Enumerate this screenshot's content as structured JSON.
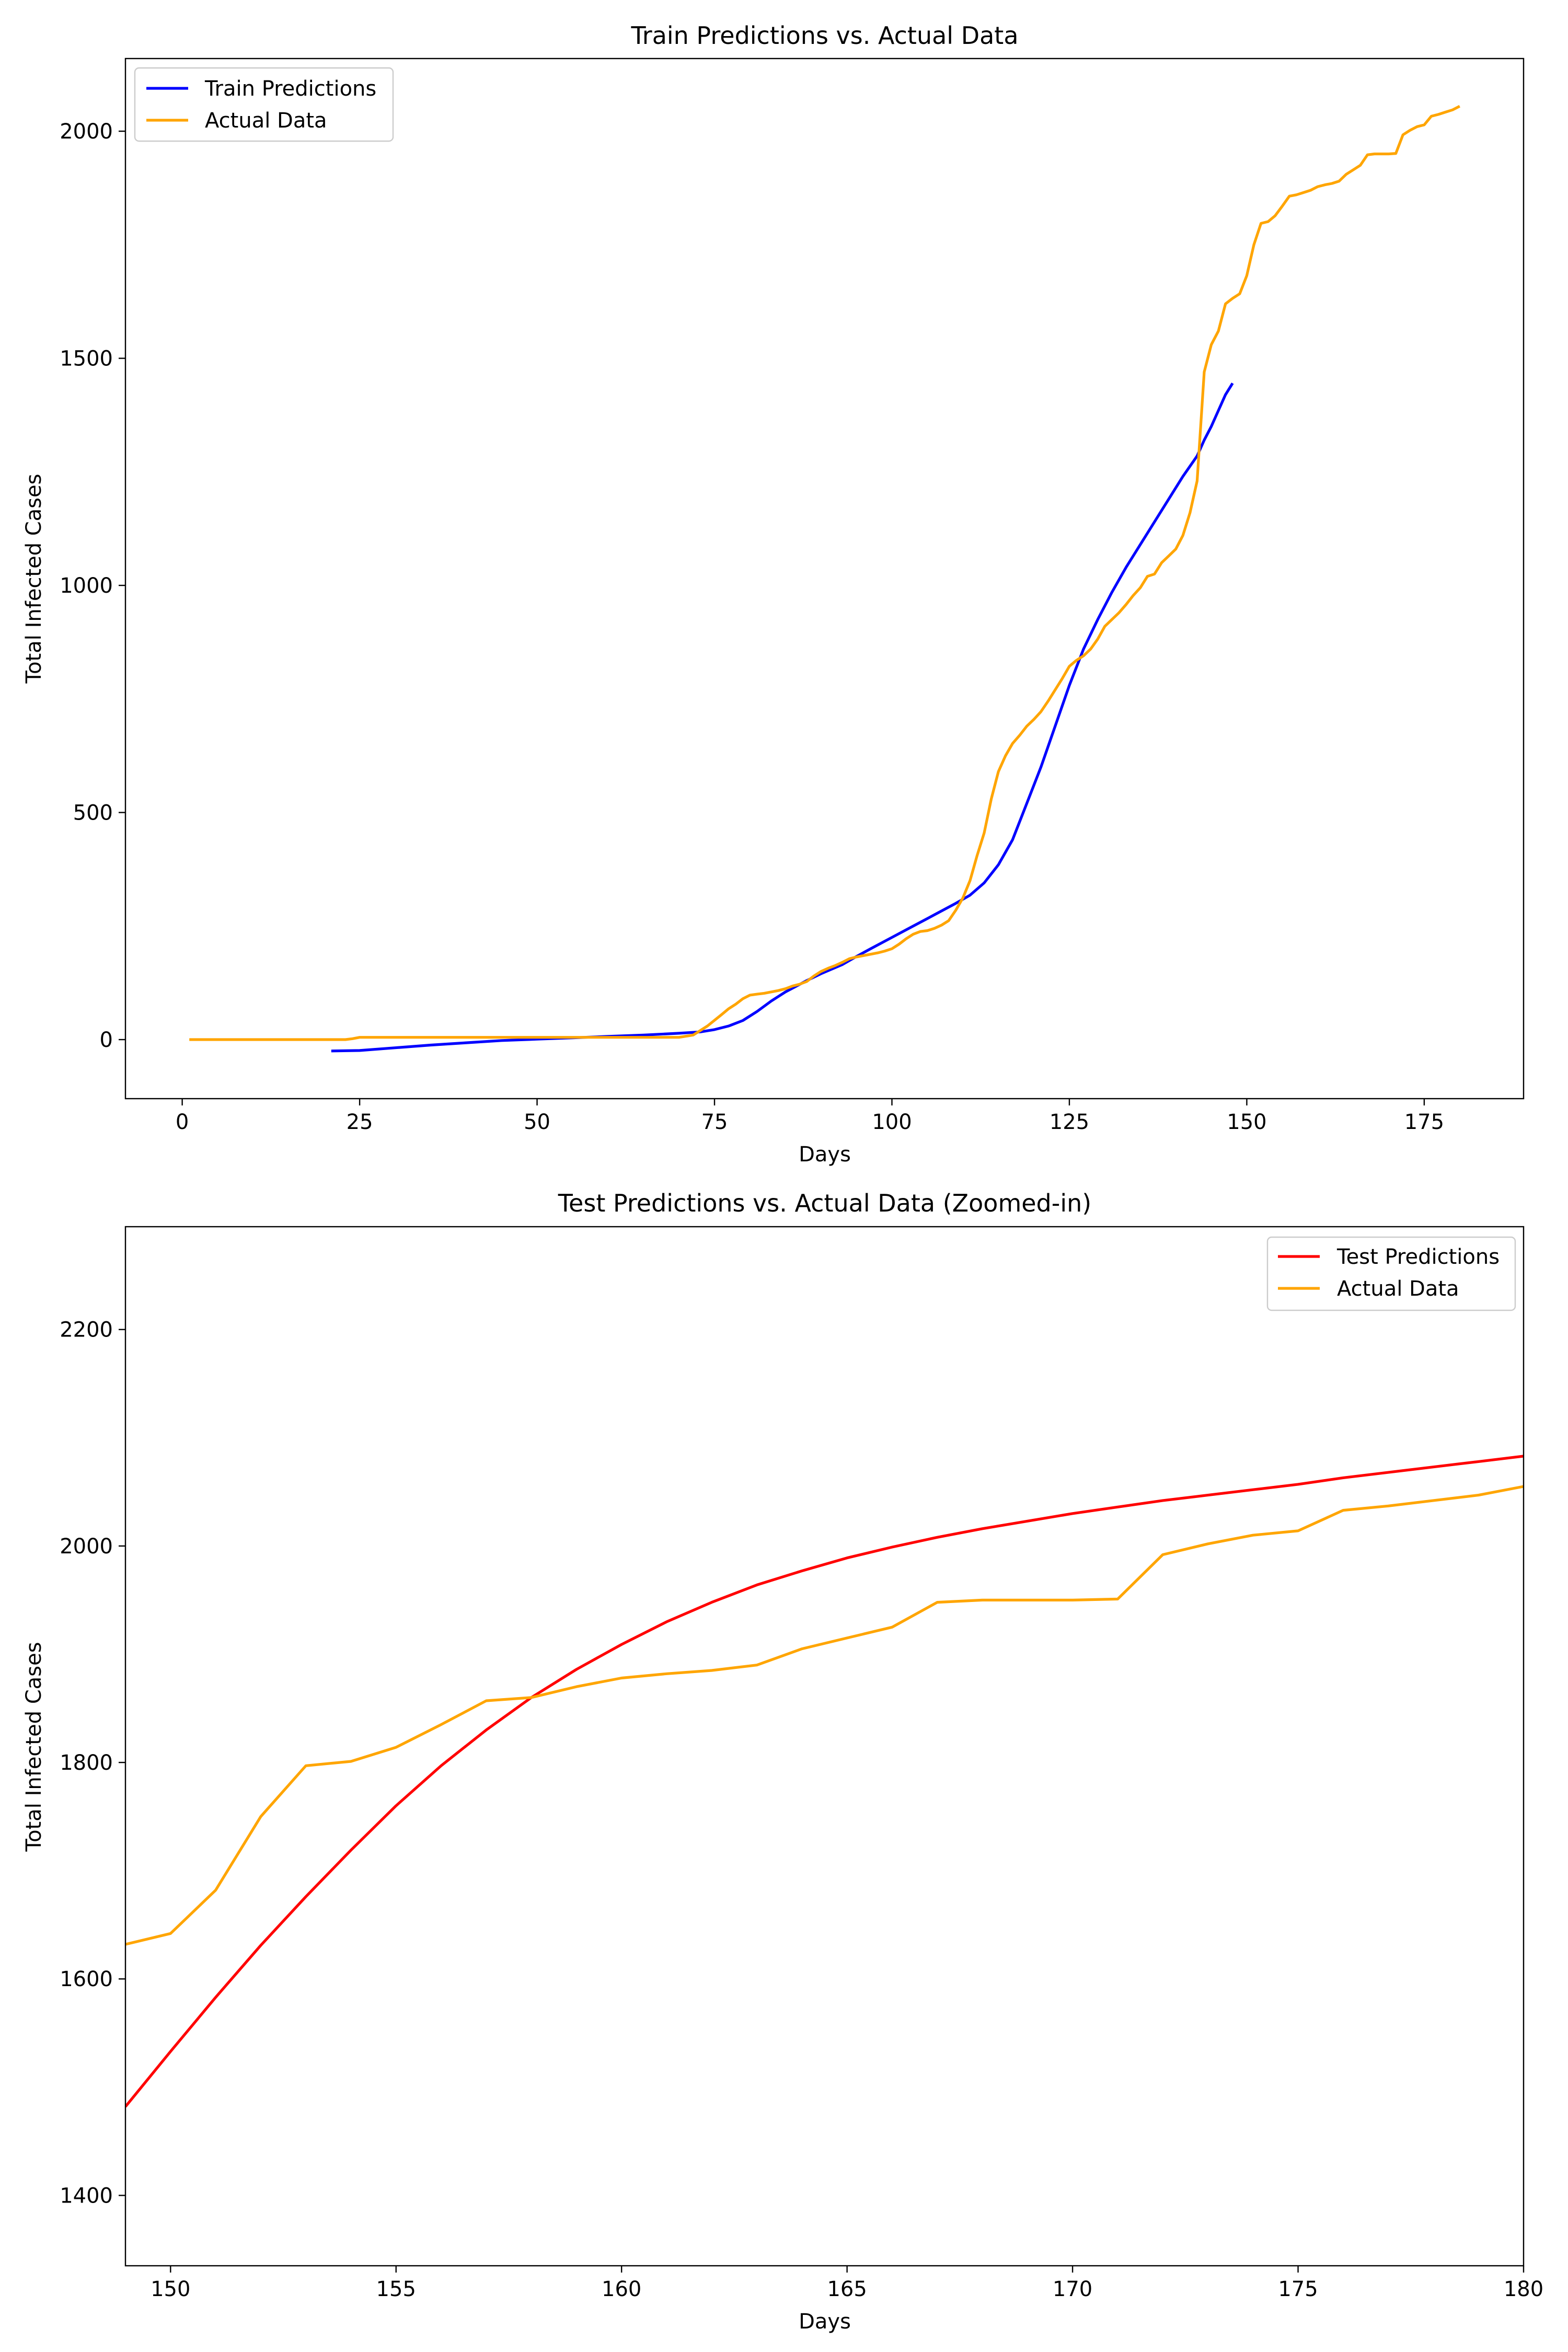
{
  "chart_data": [
    {
      "type": "line",
      "title": "Train Predictions vs. Actual Data",
      "xlabel": "Days",
      "ylabel": "Total Infected Cases",
      "xlim": [
        -8,
        189
      ],
      "ylim": [
        -130,
        2160
      ],
      "xticks": [
        0,
        25,
        50,
        75,
        100,
        125,
        150,
        175
      ],
      "yticks": [
        0,
        500,
        1000,
        1500,
        2000
      ],
      "legend_position": "upper-left",
      "series": [
        {
          "name": "Train Predictions",
          "color": "#0000ff",
          "x": [
            21,
            25,
            30,
            35,
            40,
            45,
            50,
            55,
            60,
            65,
            70,
            73,
            75,
            77,
            79,
            81,
            83,
            85,
            88,
            90,
            93,
            95,
            97,
            100,
            103,
            106,
            109,
            111,
            113,
            115,
            117,
            119,
            121,
            123,
            125,
            127,
            129,
            131,
            133,
            135,
            137,
            139,
            141,
            143,
            144,
            145,
            146,
            147,
            148
          ],
          "y": [
            -25,
            -24,
            -18,
            -12,
            -7,
            -2,
            1,
            4,
            7,
            10,
            14,
            17,
            22,
            30,
            42,
            62,
            85,
            105,
            130,
            145,
            165,
            183,
            200,
            225,
            250,
            275,
            300,
            318,
            345,
            385,
            440,
            520,
            600,
            690,
            780,
            860,
            925,
            985,
            1040,
            1090,
            1140,
            1190,
            1240,
            1285,
            1320,
            1350,
            1385,
            1420,
            1445
          ]
        },
        {
          "name": "Actual Data",
          "color": "#ffa500",
          "x": [
            1,
            5,
            10,
            15,
            20,
            23,
            24,
            25,
            30,
            40,
            50,
            60,
            65,
            70,
            72,
            74,
            76,
            77,
            78,
            79,
            80,
            81,
            82,
            83,
            84,
            85,
            86,
            87,
            88,
            89,
            90,
            91,
            92,
            93,
            94,
            95,
            96,
            97,
            98,
            99,
            100,
            101,
            102,
            103,
            104,
            105,
            106,
            107,
            108,
            109,
            110,
            111,
            112,
            113,
            114,
            115,
            116,
            117,
            118,
            119,
            120,
            121,
            122,
            123,
            124,
            125,
            126,
            127,
            128,
            129,
            130,
            131,
            132,
            133,
            134,
            135,
            136,
            137,
            138,
            139,
            140,
            141,
            142,
            143,
            144,
            145,
            146,
            147,
            148,
            149,
            150,
            151,
            152,
            153,
            154,
            155,
            156,
            157,
            158,
            159,
            160,
            161,
            162,
            163,
            164,
            165,
            166,
            167,
            168,
            169,
            170,
            171,
            172,
            173,
            174,
            175,
            176,
            177,
            178,
            179,
            180
          ],
          "y": [
            0,
            0,
            0,
            0,
            0,
            0,
            2,
            5,
            5,
            5,
            5,
            5,
            5,
            5,
            10,
            30,
            55,
            68,
            78,
            90,
            98,
            100,
            102,
            105,
            108,
            112,
            118,
            122,
            128,
            140,
            150,
            157,
            163,
            170,
            178,
            182,
            185,
            188,
            191,
            195,
            200,
            210,
            222,
            232,
            238,
            240,
            245,
            252,
            262,
            285,
            312,
            350,
            405,
            455,
            530,
            590,
            625,
            652,
            670,
            690,
            705,
            722,
            745,
            770,
            795,
            822,
            835,
            845,
            860,
            882,
            910,
            925,
            940,
            958,
            978,
            995,
            1020,
            1025,
            1050,
            1065,
            1080,
            1110,
            1160,
            1230,
            1470,
            1530,
            1560,
            1620,
            1632,
            1642,
            1682,
            1750,
            1797,
            1801,
            1814,
            1835,
            1857,
            1860,
            1865,
            1870,
            1878,
            1882,
            1885,
            1890,
            1905,
            1915,
            1925,
            1948,
            1950,
            1950,
            1950,
            1951,
            1992,
            2002,
            2010,
            2014,
            2033,
            2037,
            2042,
            2047,
            2055
          ]
        }
      ]
    },
    {
      "type": "line",
      "title": "Test Predictions vs. Actual Data (Zoomed-in)",
      "xlabel": "Days",
      "ylabel": "Total Infected Cases",
      "xlim": [
        149,
        180
      ],
      "ylim": [
        1335,
        2295
      ],
      "xticks": [
        150,
        155,
        160,
        165,
        170,
        175,
        180
      ],
      "yticks": [
        1400,
        1600,
        1800,
        2000,
        2200
      ],
      "legend_position": "upper-right",
      "series": [
        {
          "name": "Test Predictions",
          "color": "#ff0000",
          "x": [
            149,
            150,
            151,
            152,
            153,
            154,
            155,
            156,
            157,
            158,
            159,
            160,
            161,
            162,
            163,
            164,
            165,
            166,
            167,
            168,
            169,
            170,
            171,
            172,
            173,
            174,
            175,
            176,
            177,
            178,
            179,
            180
          ],
          "y": [
            1482,
            1533,
            1583,
            1631,
            1676,
            1719,
            1760,
            1797,
            1830,
            1860,
            1886,
            1909,
            1930,
            1948,
            1964,
            1977,
            1989,
            1999,
            2008,
            2016,
            2023,
            2030,
            2036,
            2042,
            2047,
            2052,
            2057,
            2063,
            2068,
            2073,
            2078,
            2083
          ]
        },
        {
          "name": "Actual Data",
          "color": "#ffa500",
          "x": [
            149,
            150,
            151,
            152,
            153,
            154,
            155,
            156,
            157,
            158,
            159,
            160,
            161,
            162,
            163,
            164,
            165,
            166,
            167,
            168,
            169,
            170,
            171,
            172,
            173,
            174,
            175,
            176,
            177,
            178,
            179,
            180
          ],
          "y": [
            1632,
            1642,
            1682,
            1750,
            1797,
            1801,
            1814,
            1835,
            1857,
            1860,
            1870,
            1878,
            1882,
            1885,
            1890,
            1905,
            1915,
            1925,
            1948,
            1950,
            1950,
            1950,
            1951,
            1992,
            2002,
            2010,
            2014,
            2033,
            2037,
            2042,
            2047,
            2055
          ]
        }
      ]
    }
  ]
}
